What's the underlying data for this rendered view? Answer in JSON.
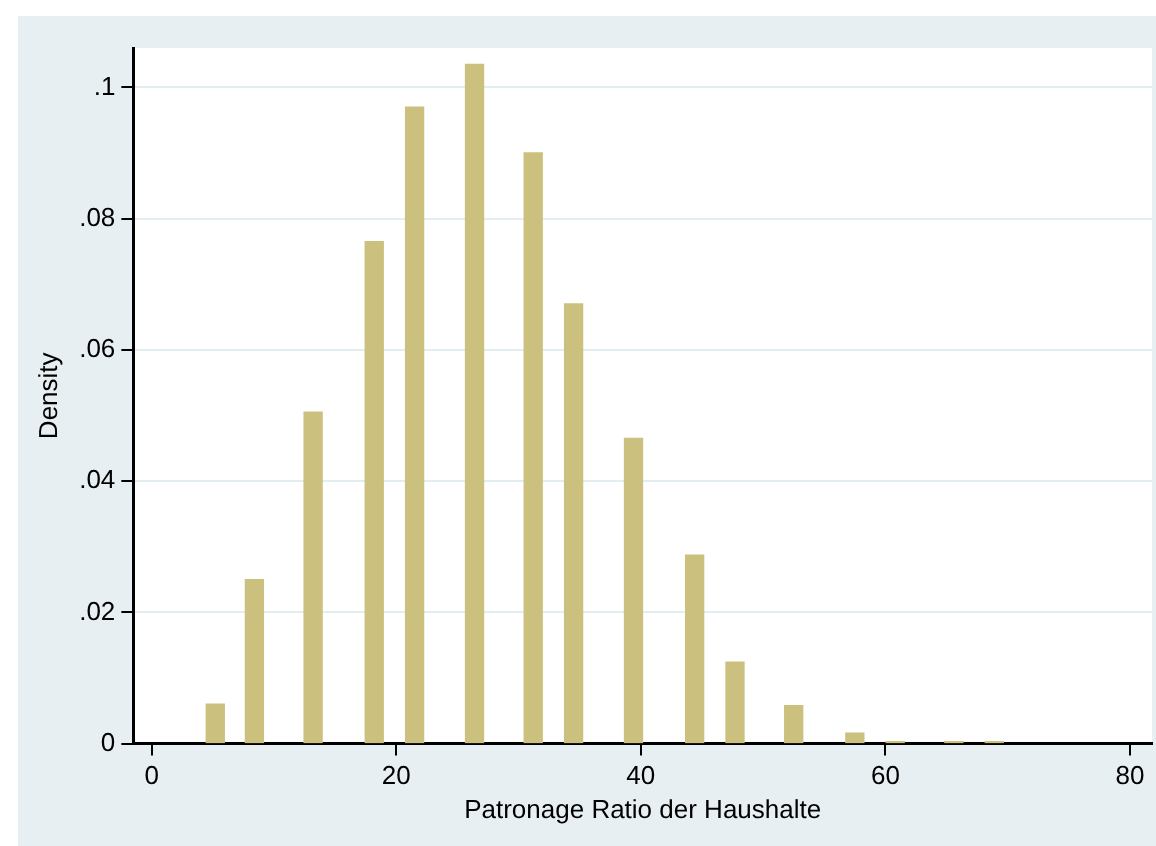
{
  "chart_data": {
    "type": "bar",
    "xlabel": "Patronage Ratio der Haushalte",
    "ylabel": "Density",
    "x": [
      5.2,
      8.4,
      13.2,
      18.2,
      21.5,
      26.4,
      31.2,
      34.5,
      39.4,
      44.4,
      47.7,
      52.5,
      57.5,
      60.8,
      65.6,
      68.9
    ],
    "values": [
      0.006,
      0.025,
      0.0505,
      0.0765,
      0.097,
      0.1035,
      0.09,
      0.067,
      0.0465,
      0.0287,
      0.0124,
      0.0058,
      0.0016,
      0.0003,
      0.0003,
      0.0003
    ],
    "color": "#cbc07d",
    "xlim": [
      -1.5,
      81.8
    ],
    "xticks": [
      0,
      20,
      40,
      60,
      80
    ],
    "ylim": [
      0,
      0.106
    ],
    "yticks": [
      0,
      {
        "value": 0.02,
        "label": ".02"
      },
      {
        "value": 0.04,
        "label": ".04"
      },
      {
        "value": 0.06,
        "label": ".06"
      },
      {
        "value": 0.08,
        "label": ".08"
      },
      {
        "value": 0.1,
        "label": ".1"
      }
    ],
    "grid": "y",
    "legend": false
  }
}
